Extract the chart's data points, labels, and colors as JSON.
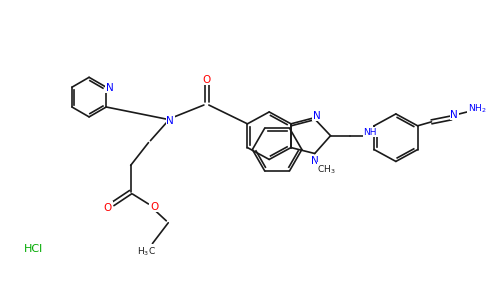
{
  "background_color": "#ffffff",
  "bond_color": "#1a1a1a",
  "nitrogen_color": "#0000ff",
  "oxygen_color": "#ff0000",
  "green_color": "#00aa00",
  "figure_width": 4.84,
  "figure_height": 3.0,
  "dpi": 100
}
